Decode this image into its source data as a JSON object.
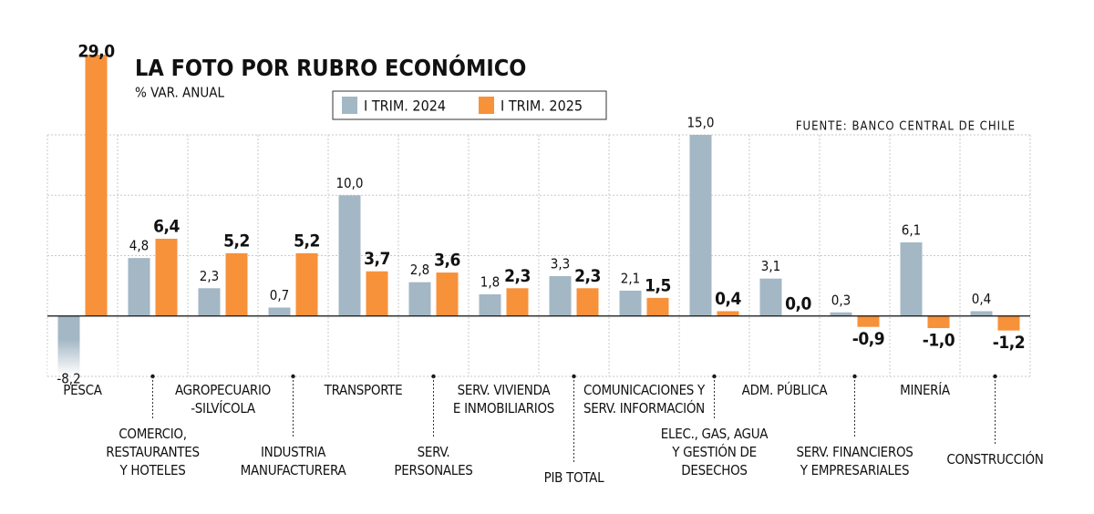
{
  "chart_data": {
    "type": "bar",
    "title": "LA FOTO POR RUBRO ECONÓMICO",
    "subtitle": "% VAR. ANUAL",
    "source": "FUENTE: BANCO CENTRAL DE CHILE",
    "categories": [
      "PESCA",
      "COMERCIO,\nRESTAURANTES\nY HOTELES",
      "AGROPECUARIO\n-SILVÍCOLA",
      "INDUSTRIA\nMANUFACTURERA",
      "TRANSPORTE",
      "SERV.\nPERSONALES",
      "SERV. VIVIENDA\nE INMOBILIARIOS",
      "PIB TOTAL",
      "COMUNICACIONES Y\nSERV. INFORMACIÓN",
      "ELEC., GAS, AGUA\nY GESTIÓN DE\nDESECHOS",
      "ADM. PÚBLICA",
      "SERV. FINANCIEROS\nY EMPRESARIALES",
      "MINERÍA",
      "CONSTRUCCIÓN"
    ],
    "series": [
      {
        "name": "I TRIM. 2024",
        "color": "#a3b7c4",
        "values": [
          -8.2,
          4.8,
          2.3,
          0.7,
          10.0,
          2.8,
          1.8,
          3.3,
          2.1,
          15.0,
          3.1,
          0.3,
          6.1,
          0.4
        ],
        "value_labels": [
          "-8,2",
          "4,8",
          "2,3",
          "0,7",
          "10,0",
          "2,8",
          "1,8",
          "3,3",
          "2,1",
          "15,0",
          "3,1",
          "0,3",
          "6,1",
          "0,4"
        ]
      },
      {
        "name": "I TRIM. 2025",
        "color": "#f7913a",
        "values": [
          29.0,
          6.4,
          5.2,
          5.2,
          3.7,
          3.6,
          2.3,
          2.3,
          1.5,
          0.4,
          0.0,
          -0.9,
          -1.0,
          -1.2
        ],
        "value_labels": [
          "29,0",
          "6,4",
          "5,2",
          "5,2",
          "3,7",
          "3,6",
          "2,3",
          "2,3",
          "1,5",
          "0,4",
          "0,0",
          "-0,9",
          "-1,0",
          "-1,2"
        ]
      }
    ],
    "ylim": [
      -5,
      15
    ],
    "yticks": [
      -5,
      0,
      5,
      10,
      15
    ],
    "grid": true
  }
}
